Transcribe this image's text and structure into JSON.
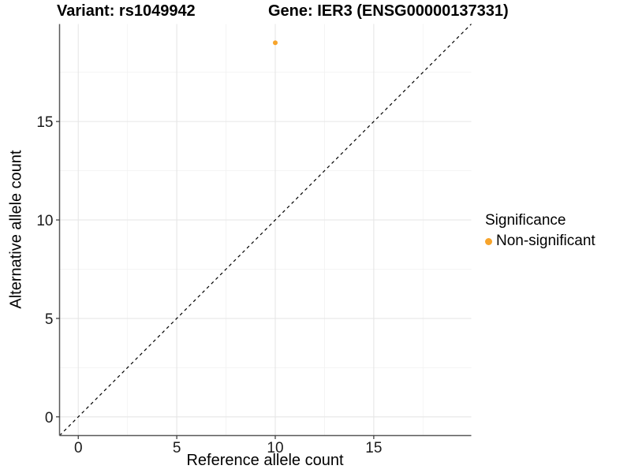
{
  "titles": {
    "variant": "Variant: rs1049942",
    "gene": "Gene: IER3 (ENSG00000137331)"
  },
  "legend": {
    "title": "Significance",
    "items": [
      {
        "label": "Non-significant",
        "color": "#F7A42B"
      }
    ]
  },
  "chart_data": {
    "type": "scatter",
    "title": "Variant: rs1049942  Gene: IER3 (ENSG00000137331)",
    "xlabel": "Reference allele count",
    "ylabel": "Alternative allele count",
    "xlim": [
      -0.95,
      19.95
    ],
    "ylim": [
      -0.95,
      19.95
    ],
    "xticks": [
      0,
      5,
      10,
      15
    ],
    "yticks": [
      0,
      5,
      10,
      15
    ],
    "x_minor_ticks": [
      2.5,
      7.5,
      12.5,
      17.5
    ],
    "y_minor_ticks": [
      2.5,
      7.5,
      12.5,
      17.5
    ],
    "grid": true,
    "legend_position": "right",
    "identity_line": {
      "type": "abline",
      "slope": 1,
      "intercept": 0,
      "style": "dashed"
    },
    "series": [
      {
        "name": "Non-significant",
        "color": "#F7A42B",
        "points": [
          {
            "x": 10,
            "y": 19
          }
        ]
      }
    ]
  },
  "colors": {
    "point": "#F7A42B",
    "grid_major": "#E6E6E6",
    "grid_minor": "#F2F2F2",
    "axis_line": "#595959",
    "tick_mark": "#333333",
    "tick_label": "#1A1A1A",
    "identity_line": "#000000",
    "background": "#FFFFFF"
  }
}
